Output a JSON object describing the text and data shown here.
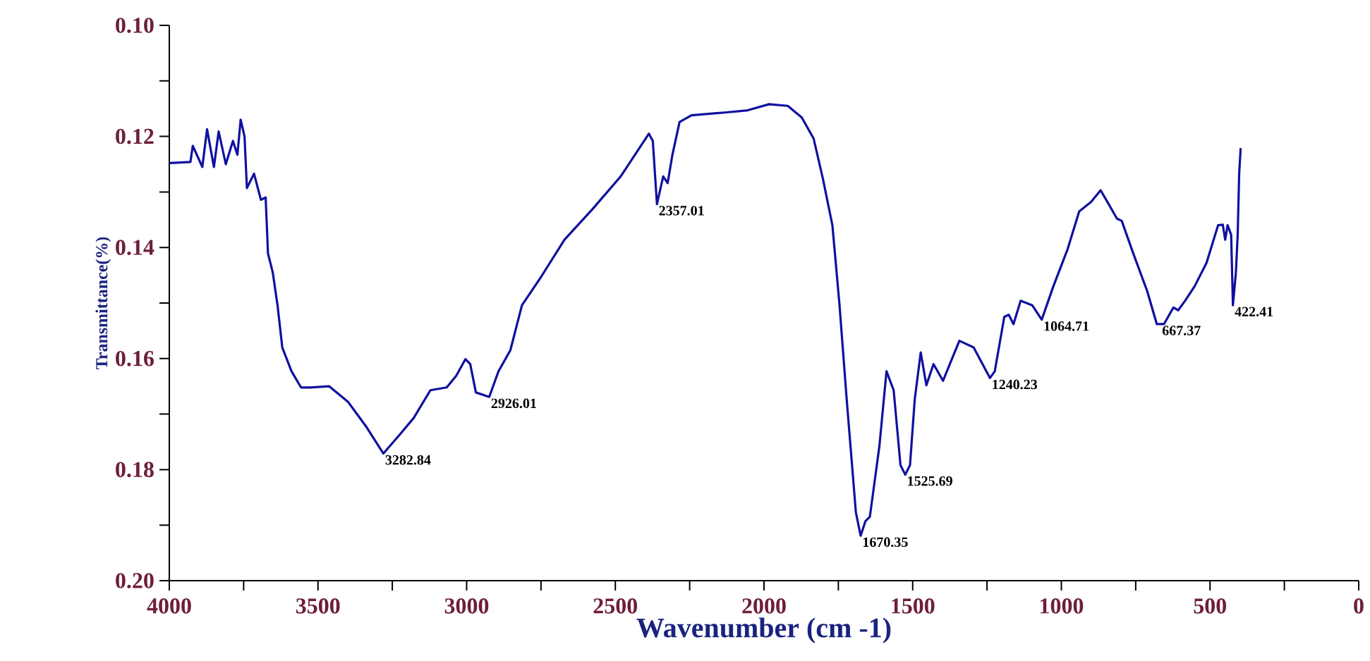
{
  "chart_data": {
    "type": "line",
    "xlabel": "Wavenumber (cm -1)",
    "ylabel": "Transmittance(%)",
    "xlim": [
      4000,
      0
    ],
    "ylim": [
      0.2,
      0.1
    ],
    "xticks": [
      4000,
      {
        "value": 3750,
        "label": null
      },
      3500,
      {
        "value": 3250,
        "label": null
      },
      3000,
      {
        "value": 2750,
        "label": null
      },
      2500,
      {
        "value": 2250,
        "label": null
      },
      2000,
      {
        "value": 1750,
        "label": null
      },
      1500,
      {
        "value": 1250,
        "label": null
      },
      1000,
      {
        "value": 750,
        "label": null
      },
      500,
      {
        "value": 250,
        "label": null
      },
      0
    ],
    "yticks": [
      {
        "value": 0.1,
        "label": "0.10"
      },
      {
        "value": 0.11,
        "label": null
      },
      {
        "value": 0.12,
        "label": "0.12"
      },
      {
        "value": 0.13,
        "label": null
      },
      {
        "value": 0.14,
        "label": "0.14"
      },
      {
        "value": 0.15,
        "label": null
      },
      {
        "value": 0.16,
        "label": "0.16"
      },
      {
        "value": 0.17,
        "label": null
      },
      {
        "value": 0.18,
        "label": "0.18"
      },
      {
        "value": 0.19,
        "label": null
      },
      {
        "value": 0.2,
        "label": "0.20"
      }
    ],
    "marker": "none",
    "line_style": "solid",
    "series": [
      {
        "color": "#1010a0",
        "x": [
          4000,
          3929,
          3921,
          3889,
          3873,
          3850,
          3834,
          3810,
          3786,
          3771,
          3760,
          3747,
          3739,
          3715,
          3692,
          3676,
          3668,
          3652,
          3636,
          3620,
          3589,
          3557,
          3526,
          3462,
          3399,
          3336,
          3280,
          3225,
          3178,
          3122,
          3067,
          3035,
          3004,
          2988,
          2969,
          2924,
          2893,
          2853,
          2814,
          2751,
          2671,
          2577,
          2482,
          2387,
          2374,
          2360,
          2339,
          2324,
          2308,
          2284,
          2244,
          2134,
          2055,
          1983,
          1920,
          1873,
          1833,
          1802,
          1770,
          1746,
          1722,
          1691,
          1675,
          1659,
          1644,
          1612,
          1588,
          1564,
          1541,
          1525,
          1509,
          1493,
          1473,
          1454,
          1430,
          1398,
          1343,
          1295,
          1240,
          1224,
          1192,
          1177,
          1161,
          1137,
          1098,
          1066,
          1027,
          979,
          940,
          900,
          868,
          845,
          813,
          797,
          758,
          711,
          679,
          655,
          623,
          607,
          584,
          552,
          512,
          473,
          457,
          449,
          441,
          429,
          423,
          413,
          407,
          402,
          397
        ],
        "values": [
          0.1248,
          0.1246,
          0.1217,
          0.1255,
          0.1187,
          0.1255,
          0.1191,
          0.125,
          0.1208,
          0.1233,
          0.117,
          0.12,
          0.1293,
          0.1267,
          0.1314,
          0.131,
          0.1411,
          0.1445,
          0.1504,
          0.158,
          0.1623,
          0.1652,
          0.1652,
          0.165,
          0.1678,
          0.1724,
          0.1771,
          0.1737,
          0.1707,
          0.1657,
          0.1652,
          0.1631,
          0.1601,
          0.161,
          0.1661,
          0.1669,
          0.1623,
          0.1585,
          0.1504,
          0.1454,
          0.1386,
          0.1331,
          0.1272,
          0.1195,
          0.1208,
          0.1322,
          0.1272,
          0.1284,
          0.1233,
          0.1174,
          0.1162,
          0.1157,
          0.1153,
          0.1142,
          0.1145,
          0.1166,
          0.1204,
          0.1276,
          0.136,
          0.1504,
          0.1673,
          0.1877,
          0.1919,
          0.1893,
          0.1885,
          0.1758,
          0.1623,
          0.1657,
          0.1792,
          0.1809,
          0.1792,
          0.1673,
          0.1589,
          0.1648,
          0.161,
          0.164,
          0.1568,
          0.158,
          0.1635,
          0.1623,
          0.1525,
          0.1521,
          0.1538,
          0.1496,
          0.1504,
          0.153,
          0.147,
          0.1403,
          0.1335,
          0.1318,
          0.1297,
          0.1318,
          0.1348,
          0.1352,
          0.1411,
          0.1479,
          0.1538,
          0.1538,
          0.1508,
          0.1513,
          0.1496,
          0.147,
          0.1428,
          0.136,
          0.1359,
          0.1386,
          0.136,
          0.1377,
          0.1504,
          0.1445,
          0.1377,
          0.1267,
          0.1221
        ]
      }
    ],
    "annotations": [
      {
        "text": "3282.84",
        "x": 3280,
        "y": 0.1771
      },
      {
        "text": "2926.01",
        "x": 2924,
        "y": 0.1669
      },
      {
        "text": "2357.01",
        "x": 2360,
        "y": 0.1322
      },
      {
        "text": "1670.35",
        "x": 1675,
        "y": 0.1919
      },
      {
        "text": "1525.69",
        "x": 1525,
        "y": 0.1809
      },
      {
        "text": "1240.23",
        "x": 1240,
        "y": 0.1635
      },
      {
        "text": "1064.71",
        "x": 1066,
        "y": 0.153
      },
      {
        "text": "667.37",
        "x": 667,
        "y": 0.1538
      },
      {
        "text": "422.41",
        "x": 423,
        "y": 0.1504
      }
    ]
  }
}
